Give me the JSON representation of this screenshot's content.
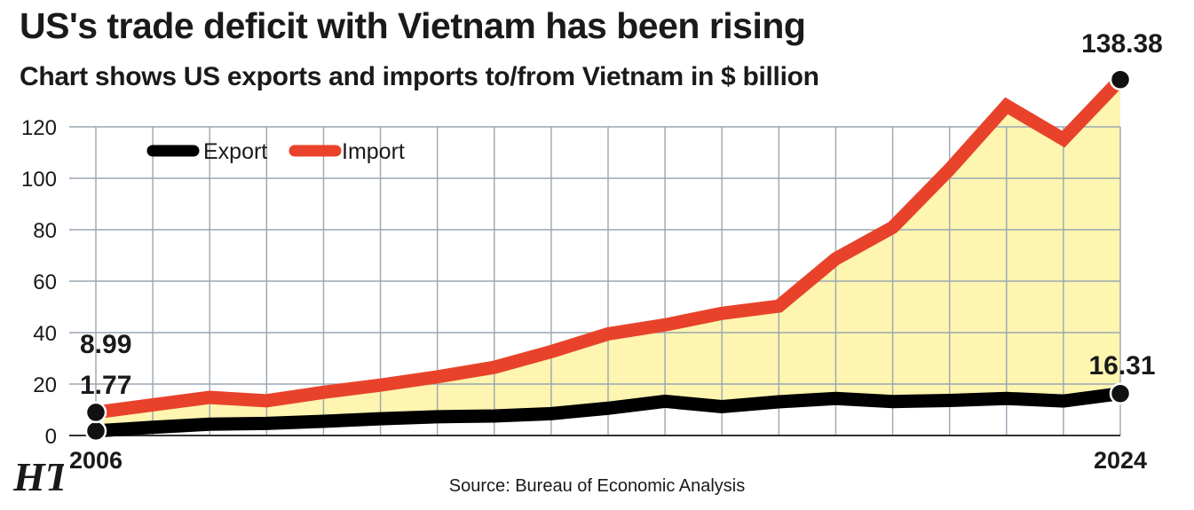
{
  "title": "US's trade deficit with Vietnam has been rising",
  "subtitle": "Chart shows US exports and imports to/from Vietnam in $ billion",
  "source": "Source: Bureau of Economic Analysis",
  "logo_text": "HT",
  "colors": {
    "export": "#000000",
    "import": "#e8432a",
    "fill": "#fdf5b0",
    "grid": "#9aa6b2",
    "grid_dark": "#333333"
  },
  "chart_data": {
    "type": "line",
    "title": "US's trade deficit with Vietnam has been rising",
    "subtitle": "Chart shows US exports and imports to/from Vietnam in $ billion",
    "x": [
      2006,
      2007,
      2008,
      2009,
      2010,
      2011,
      2012,
      2013,
      2014,
      2015,
      2016,
      2017,
      2018,
      2019,
      2020,
      2021,
      2022,
      2023,
      2024
    ],
    "x_tick_labels": {
      "2006": "2006",
      "2024": "2024"
    },
    "ylim": [
      0,
      120
    ],
    "yticks": [
      0,
      20,
      40,
      60,
      80,
      100,
      120
    ],
    "grid": true,
    "legend_position": "top-left",
    "fill_between": true,
    "series": [
      {
        "name": "Export",
        "color": "#000000",
        "values": [
          1.77,
          3.2,
          4.4,
          4.7,
          5.5,
          6.5,
          7.3,
          7.6,
          8.5,
          10.6,
          13.3,
          11.2,
          13.1,
          14.4,
          13.2,
          13.6,
          14.4,
          13.4,
          16.31
        ]
      },
      {
        "name": "Import",
        "color": "#e8432a",
        "values": [
          8.99,
          11.9,
          14.8,
          13.5,
          16.8,
          19.6,
          22.8,
          26.5,
          32.6,
          39.5,
          43.0,
          47.5,
          50.3,
          68.7,
          80.9,
          103.5,
          128.2,
          115.2,
          138.38
        ]
      }
    ],
    "annotations": [
      {
        "series": "Import",
        "x": 2006,
        "text": "8.99"
      },
      {
        "series": "Export",
        "x": 2006,
        "text": "1.77"
      },
      {
        "series": "Import",
        "x": 2024,
        "text": "138.38"
      },
      {
        "series": "Export",
        "x": 2024,
        "text": "16.31"
      }
    ]
  }
}
